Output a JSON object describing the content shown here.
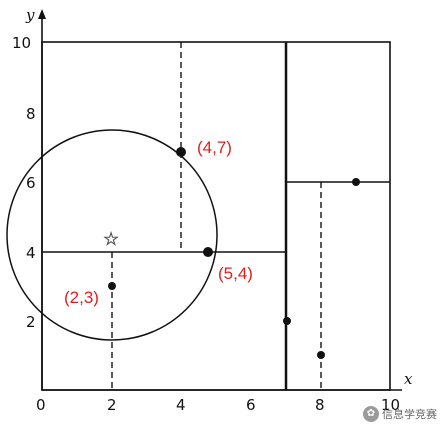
{
  "axes": {
    "x_name": "x",
    "y_name": "y",
    "x_ticks": [
      "0",
      "2",
      "4",
      "6",
      "8",
      "10"
    ],
    "y_ticks": [
      "2",
      "4",
      "6",
      "8",
      "10"
    ]
  },
  "labeled_points": [
    {
      "text": "(4,7)"
    },
    {
      "text": "(5,4)"
    },
    {
      "text": "(2,3)"
    }
  ],
  "points": [
    {
      "x": 2,
      "y": 3
    },
    {
      "x": 4,
      "y": 7
    },
    {
      "x": 5,
      "y": 4
    },
    {
      "x": 7,
      "y": 2
    },
    {
      "x": 8,
      "y": 1
    },
    {
      "x": 9,
      "y": 6
    }
  ],
  "query_point": {
    "x": 2.0,
    "y": 4.5,
    "symbol": "☆"
  },
  "watermark": {
    "text": "信息学竞赛"
  }
}
